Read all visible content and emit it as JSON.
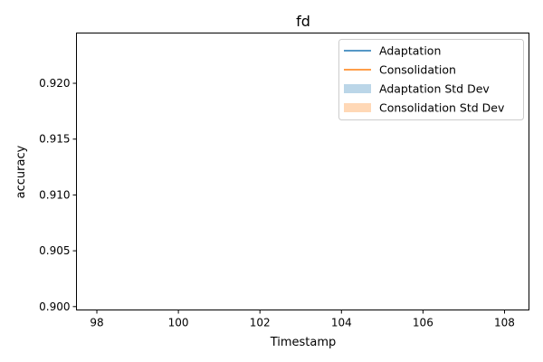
{
  "chart_data": {
    "type": "line",
    "title": "fd",
    "xlabel": "Timestamp",
    "ylabel": "accuracy",
    "xlim": [
      97.5,
      108.6
    ],
    "ylim": [
      0.8997,
      0.9245
    ],
    "xticks": [
      98,
      100,
      102,
      104,
      106,
      108
    ],
    "xtick_labels": [
      "98",
      "100",
      "102",
      "104",
      "106",
      "108"
    ],
    "yticks": [
      0.9,
      0.905,
      0.91,
      0.915,
      0.92
    ],
    "ytick_labels": [
      "0.900",
      "0.905",
      "0.910",
      "0.915",
      "0.920"
    ],
    "grid": false,
    "legend_position": "top-right",
    "series": [
      {
        "name": "Adaptation",
        "kind": "line",
        "color": "#1f77b4",
        "x": [],
        "values": []
      },
      {
        "name": "Consolidation",
        "kind": "line",
        "color": "#ff7f0e",
        "x": [],
        "values": []
      },
      {
        "name": "Adaptation Std Dev",
        "kind": "band",
        "color": "#1f77b4",
        "alpha": 0.3,
        "x": [],
        "lower": [],
        "upper": []
      },
      {
        "name": "Consolidation Std Dev",
        "kind": "band",
        "color": "#ff7f0e",
        "alpha": 0.3,
        "x": [],
        "lower": [],
        "upper": []
      }
    ]
  }
}
